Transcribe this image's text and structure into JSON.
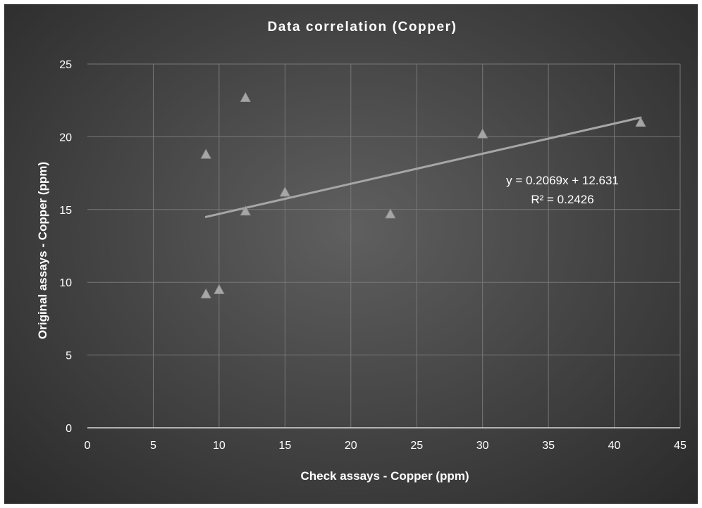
{
  "chart_data": {
    "type": "scatter",
    "title": "Data correlation (Copper)",
    "xlabel": "Check assays - Copper (ppm)",
    "ylabel": "Original assays - Copper (ppm)",
    "xlim": [
      0,
      45
    ],
    "ylim": [
      0,
      25
    ],
    "xticks": [
      0,
      5,
      10,
      15,
      20,
      25,
      30,
      35,
      40,
      45
    ],
    "yticks": [
      0,
      5,
      10,
      15,
      20,
      25
    ],
    "grid": true,
    "legend": "none",
    "marker": "triangle",
    "series": [
      {
        "x": [
          9,
          9,
          10,
          12,
          12,
          15,
          23,
          30,
          42
        ],
        "y": [
          18.8,
          9.2,
          9.5,
          22.7,
          14.9,
          16.2,
          14.7,
          20.2,
          21.0
        ]
      }
    ],
    "trendline": {
      "type": "linear",
      "slope": 0.2069,
      "intercept": 12.631,
      "x_range": [
        9,
        42
      ],
      "equation": "y = 0.2069x + 12.631",
      "r_squared": "R² = 0.2426"
    },
    "colors": {
      "marker": "#a6a6a6",
      "trendline": "#a6a6a6",
      "gridline": "#777777",
      "axis": "#d9d9d9",
      "text": "#ffffff"
    }
  }
}
